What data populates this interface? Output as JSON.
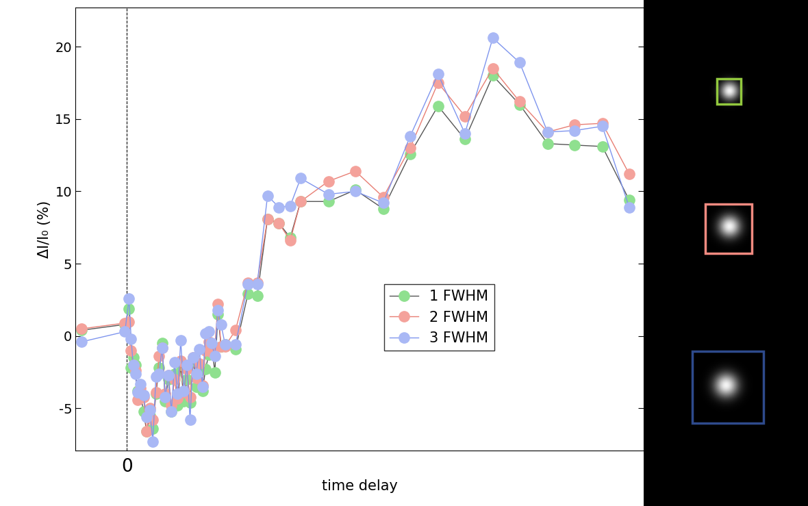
{
  "chart_data": {
    "type": "line",
    "x_label": "time delay",
    "y_label": "ΔI/I₀ (%)",
    "x": [
      -4.4,
      -0.2,
      0.2,
      0.4,
      0.6,
      0.8,
      1.0,
      1.3,
      1.6,
      1.9,
      2.2,
      2.5,
      2.8,
      3.1,
      3.4,
      3.7,
      4.0,
      4.3,
      4.6,
      4.9,
      5.2,
      5.5,
      5.8,
      6.1,
      6.4,
      6.7,
      7.0,
      7.3,
      7.6,
      7.9,
      8.2,
      8.5,
      8.8,
      9.1,
      9.5,
      10.5,
      11.7,
      12.6,
      13.6,
      14.7,
      15.8,
      16.8,
      19.5,
      22.1,
      24.8,
      27.4,
      30.1,
      32.7,
      35.4,
      38.0,
      40.7,
      43.3,
      46.0,
      48.6
    ],
    "series": [
      {
        "name": "1 FWHM",
        "color": "#8fe08f",
        "marker": "circle",
        "values": [
          0.4,
          0.8,
          1.9,
          -2.2,
          -1.5,
          -2.0,
          -3.8,
          -4.0,
          -5.2,
          -6.6,
          -5.5,
          -6.4,
          -4.0,
          -2.2,
          -0.5,
          -4.5,
          -3.0,
          -5.2,
          -2.6,
          -4.8,
          -2.0,
          -4.5,
          -3.0,
          -4.6,
          -1.7,
          -3.5,
          -2.4,
          -3.8,
          -2.3,
          -1.3,
          -0.6,
          -2.5,
          1.5,
          -0.7,
          -0.6,
          -0.9,
          2.9,
          2.8,
          8.1,
          7.8,
          6.8,
          9.3,
          9.3,
          10.1,
          8.8,
          12.6,
          15.9,
          13.6,
          18.0,
          16.0,
          13.3,
          13.2,
          13.1,
          9.4
        ]
      },
      {
        "name": "2 FWHM",
        "color": "#f4a29b",
        "marker": "circle",
        "values": [
          0.5,
          0.9,
          1.0,
          -1.0,
          -2.0,
          -2.4,
          -4.4,
          -3.6,
          -4.2,
          -6.6,
          -5.0,
          -5.8,
          -3.9,
          -1.4,
          -0.8,
          -4.0,
          -2.7,
          -4.8,
          -3.0,
          -4.3,
          -1.7,
          -3.9,
          -2.3,
          -4.2,
          -1.5,
          -2.9,
          -1.9,
          -3.4,
          -1.0,
          -0.4,
          -1.1,
          -0.8,
          2.2,
          -0.7,
          -0.7,
          0.4,
          3.7,
          3.7,
          8.1,
          7.8,
          6.6,
          9.3,
          10.7,
          11.4,
          9.6,
          13.0,
          17.5,
          15.2,
          18.5,
          16.2,
          14.1,
          14.6,
          14.7,
          11.2
        ]
      },
      {
        "name": "3 FWHM",
        "color": "#a9b8f5",
        "marker": "circle",
        "values": [
          -0.4,
          0.3,
          2.6,
          -0.2,
          -2.0,
          -2.6,
          -3.9,
          -3.3,
          -4.1,
          -5.6,
          -5.1,
          -7.3,
          -2.8,
          -2.6,
          -0.8,
          -4.2,
          -2.7,
          -5.2,
          -1.8,
          -4.0,
          -0.3,
          -3.8,
          -2.0,
          -5.8,
          -1.5,
          -2.6,
          -0.9,
          -3.5,
          0.2,
          0.3,
          -0.5,
          -1.4,
          1.8,
          0.8,
          -0.6,
          -0.6,
          3.6,
          3.6,
          9.7,
          8.9,
          9.0,
          10.9,
          9.8,
          10.0,
          9.2,
          13.8,
          18.1,
          14.0,
          20.6,
          18.9,
          14.1,
          14.2,
          14.5,
          8.9
        ]
      }
    ],
    "xlim": [
      -5,
      50
    ],
    "xticks": [
      0
    ],
    "ylim": [
      -7.9,
      22.7
    ],
    "yticks": [
      -5,
      0,
      5,
      10,
      15,
      20
    ],
    "legend": "center",
    "grid": false
  }
}
